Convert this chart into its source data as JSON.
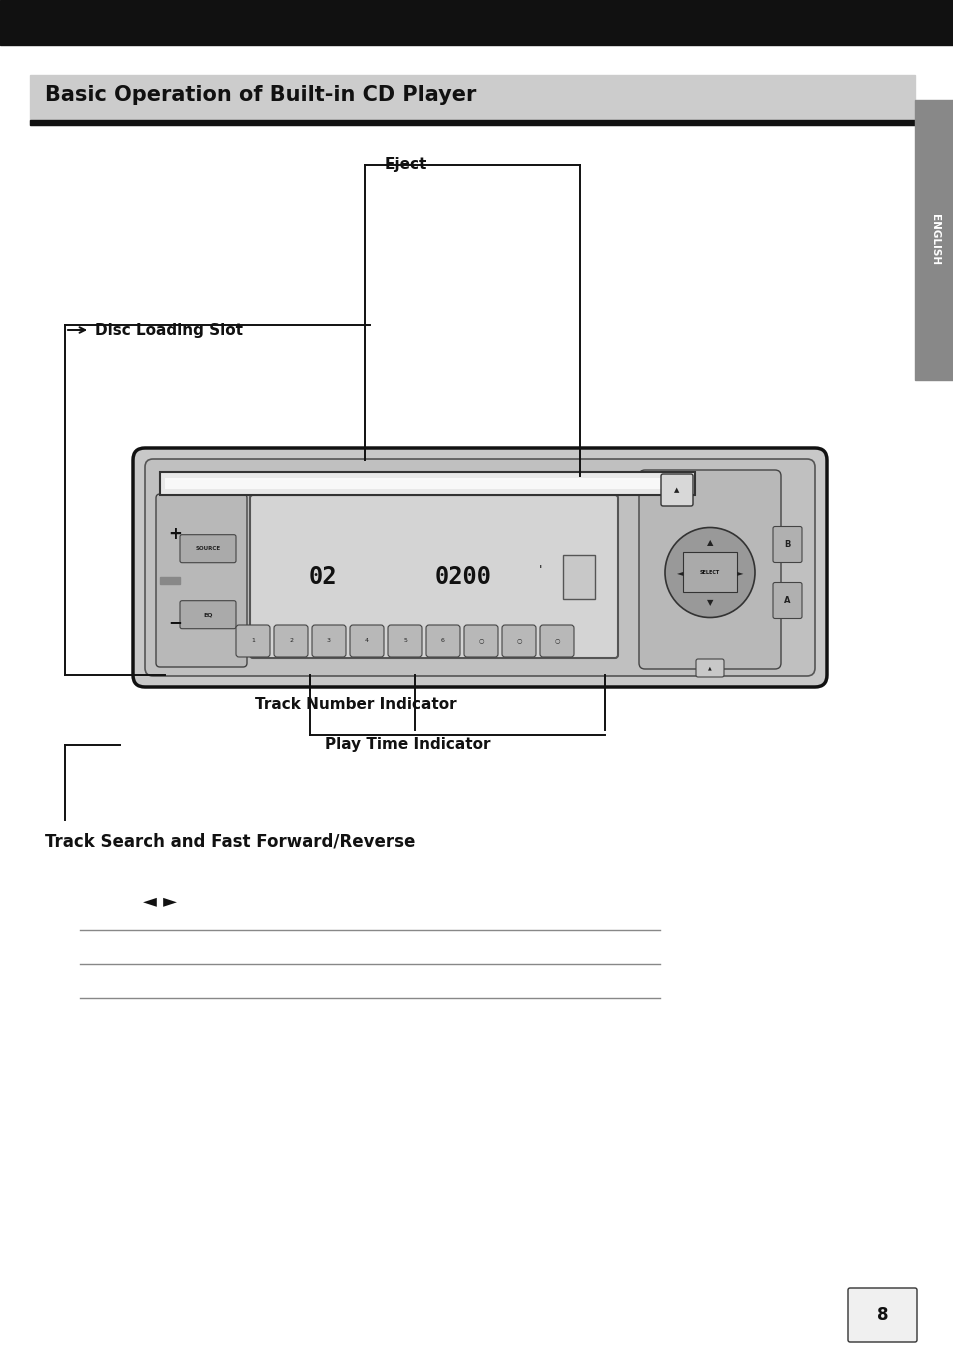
{
  "page_bg": "#ffffff",
  "black_bar_color": "#111111",
  "title_text": "Basic Operation of Built-in CD Player",
  "section2_title": "Track Search and Fast Forward/Reverse",
  "page_number": "8",
  "eject_label": "Eject",
  "disc_loading_label": "Disc Loading Slot",
  "track_num_label": "Track Number Indicator",
  "play_time_label": "Play Time Indicator",
  "device_color": "#c8c8c8",
  "display_color": "#d0d0d0",
  "line_color": "#111111"
}
